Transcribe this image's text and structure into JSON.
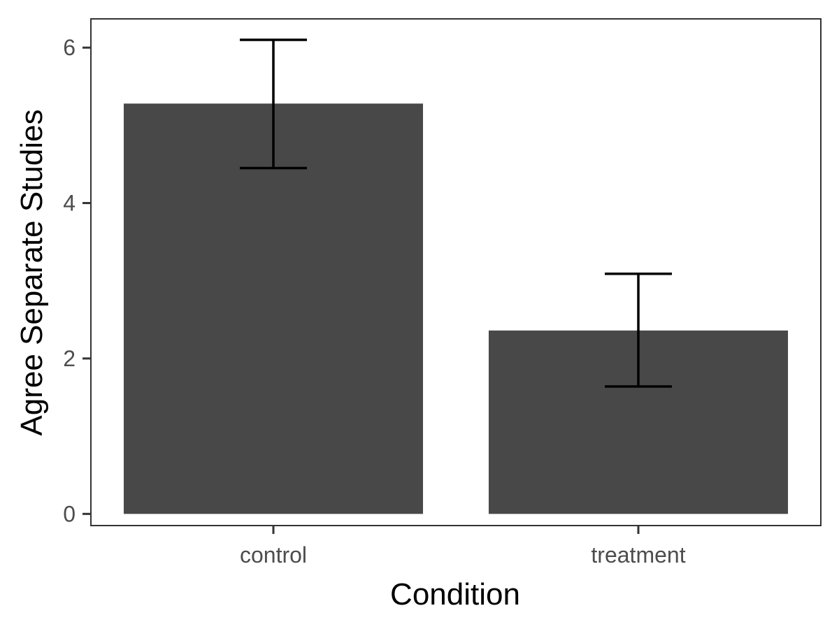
{
  "chart_data": {
    "type": "bar",
    "title": "",
    "xlabel": "Condition",
    "ylabel": "Agree Separate Studies",
    "categories": [
      "control",
      "treatment"
    ],
    "values": [
      5.28,
      2.36
    ],
    "error_bars": {
      "lower": [
        4.45,
        1.64
      ],
      "upper": [
        6.1,
        3.09
      ]
    },
    "ylim": [
      -0.15,
      6.37
    ],
    "y_ticks": [
      0,
      2,
      4,
      6
    ],
    "grid": false,
    "legend": "none",
    "colors": {
      "bar_fill": "#484848",
      "error_bar": "#000000",
      "panel_border": "#333333",
      "tick": "#333333",
      "tick_label": "#4d4d4d",
      "axis_title": "#000000"
    }
  }
}
